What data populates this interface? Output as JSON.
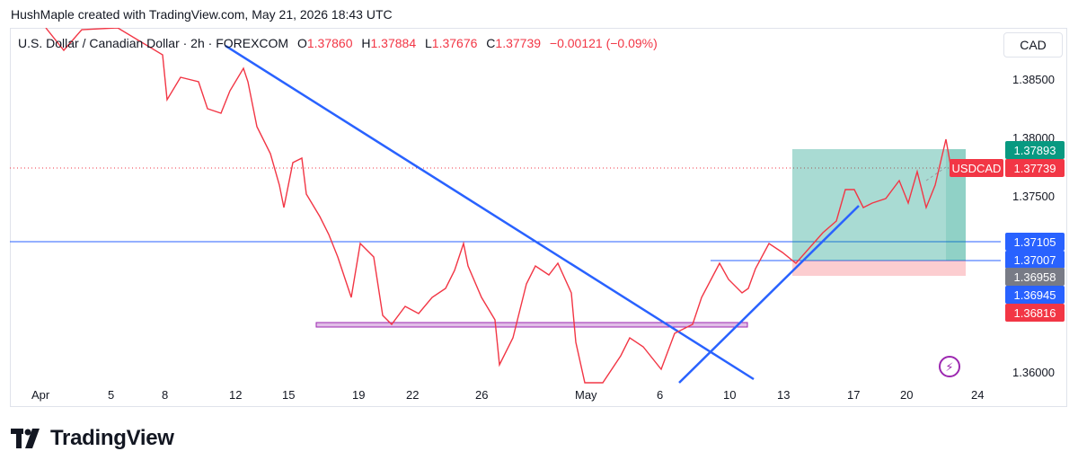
{
  "caption": "HushMaple created with TradingView.com, May 21, 2026 18:43 UTC",
  "legend": {
    "symbol": "U.S. Dollar / Canadian Dollar · 2h · FOREXCOM",
    "open_label": "O",
    "open": "1.37860",
    "high_label": "H",
    "high": "1.37884",
    "low_label": "L",
    "low": "1.37676",
    "close_label": "C",
    "close": "1.37739",
    "change": "−0.00121 (−0.09%)"
  },
  "currency_button": "CAD",
  "price_axis": {
    "ticks": [
      "1.38500",
      "1.38000",
      "1.37500",
      "1.36000"
    ]
  },
  "price_labels": {
    "take_profit": "1.37893",
    "last": "1.37739",
    "level_1": "1.37105",
    "level_2": "1.37007",
    "level_3": "1.36958",
    "level_4": "1.36945",
    "stop_loss": "1.36816"
  },
  "symbol_tag": "USDCAD",
  "time_axis": {
    "ticks": [
      "Apr",
      "5",
      "8",
      "12",
      "15",
      "19",
      "22",
      "26",
      "May",
      "6",
      "10",
      "13",
      "17",
      "20",
      "24"
    ]
  },
  "brand": "TradingView",
  "colors": {
    "up": "#089981",
    "down": "#f23645",
    "trendline": "#2962ff",
    "zone": "#9c27b0",
    "profit": "#089981",
    "loss": "#f23645"
  },
  "icons": {
    "bolt": "lightning-icon",
    "logo": "tradingview-logo-icon"
  }
}
